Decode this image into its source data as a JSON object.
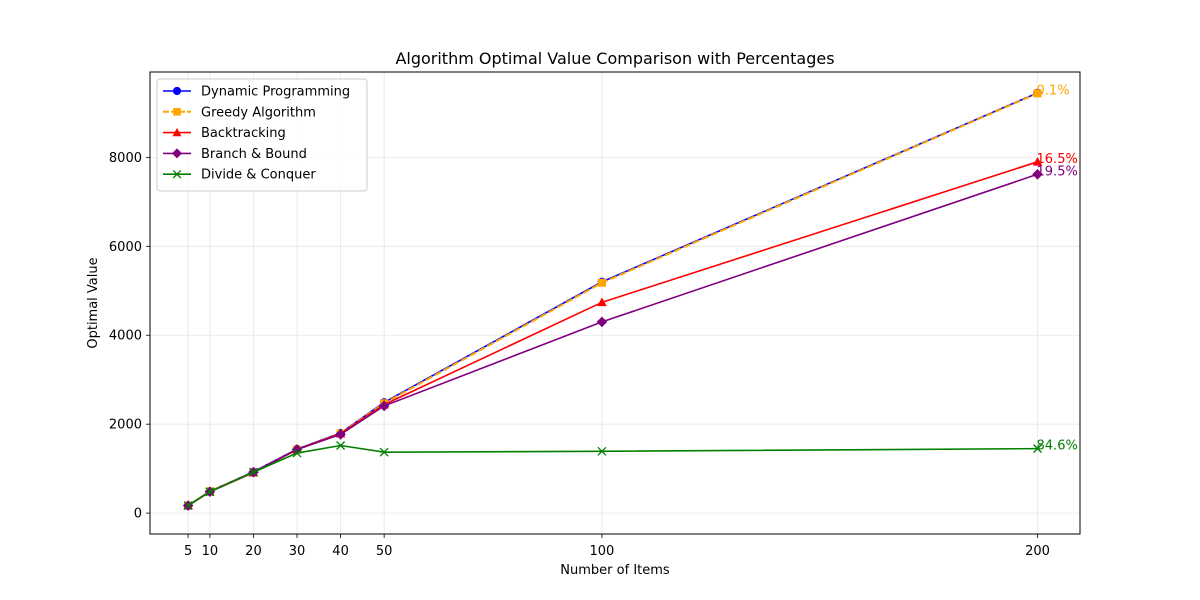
{
  "chart_data": {
    "type": "line",
    "title": "Algorithm Optimal Value Comparison with Percentages",
    "xlabel": "Number of Items",
    "ylabel": "Optimal Value",
    "x": [
      5,
      10,
      20,
      30,
      40,
      50,
      100,
      200
    ],
    "x_ticks": [
      5,
      10,
      20,
      30,
      40,
      50,
      100,
      200
    ],
    "y_ticks": [
      0,
      2000,
      4000,
      6000,
      8000
    ],
    "xlim": [
      -3.75,
      209.75
    ],
    "ylim": [
      -470,
      9920
    ],
    "grid": true,
    "legend_position": "upper-left",
    "series": [
      {
        "name": "Dynamic Programming",
        "color": "#0000ff",
        "marker": "circle",
        "dash": "solid",
        "values": [
          170,
          490,
          930,
          1440,
          1800,
          2490,
          5200,
          9450
        ]
      },
      {
        "name": "Greedy Algorithm",
        "color": "#ffa500",
        "marker": "square",
        "dash": "dashed",
        "values": [
          170,
          490,
          920,
          1430,
          1790,
          2470,
          5180,
          9440
        ]
      },
      {
        "name": "Backtracking",
        "color": "#ff0000",
        "marker": "triangle",
        "dash": "solid",
        "values": [
          170,
          480,
          910,
          1430,
          1790,
          2440,
          4740,
          7900
        ]
      },
      {
        "name": "Branch & Bound",
        "color": "#800080",
        "marker": "diamond",
        "dash": "solid",
        "values": [
          170,
          480,
          920,
          1430,
          1770,
          2410,
          4300,
          7620
        ]
      },
      {
        "name": "Divide & Conquer",
        "color": "#008000",
        "marker": "x",
        "dash": "solid",
        "values": [
          170,
          480,
          920,
          1350,
          1520,
          1370,
          1390,
          1450
        ]
      }
    ],
    "annotations": [
      {
        "series": "Greedy Algorithm",
        "x": 200,
        "y": 9440,
        "text": "0.1%",
        "color": "#ffa500"
      },
      {
        "series": "Backtracking",
        "x": 200,
        "y": 7900,
        "text": "16.5%",
        "color": "#ff0000"
      },
      {
        "series": "Branch & Bound",
        "x": 200,
        "y": 7620,
        "text": "19.5%",
        "color": "#800080"
      },
      {
        "series": "Divide & Conquer",
        "x": 200,
        "y": 1450,
        "text": "84.6%",
        "color": "#008000"
      }
    ]
  }
}
